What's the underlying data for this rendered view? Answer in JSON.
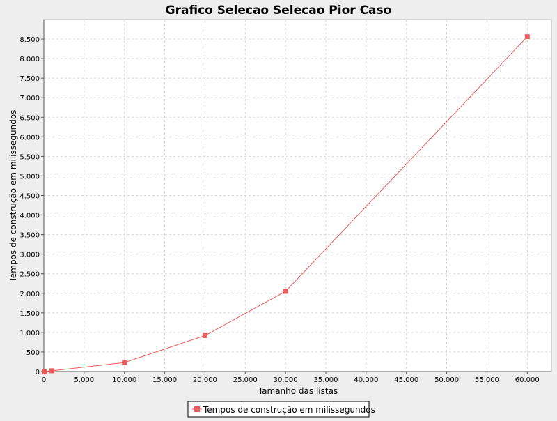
{
  "colors": {
    "background": "#eeeeee",
    "plot_background": "#ffffff",
    "gridline": "#d8d8d8",
    "axis": "#555555",
    "series": "#f05a5a",
    "text": "#000000"
  },
  "chart_data": {
    "type": "line",
    "title": "Grafico Selecao Selecao Pior Caso",
    "xlabel": "Tamanho das listas",
    "ylabel": "Tempos de construção em milissegundos",
    "xlim": [
      0,
      63000
    ],
    "ylim": [
      0,
      9000
    ],
    "x_ticks": [
      0,
      5000,
      10000,
      15000,
      20000,
      25000,
      30000,
      35000,
      40000,
      45000,
      50000,
      55000,
      60000
    ],
    "x_tick_labels": [
      "0",
      "5.000",
      "10.000",
      "15.000",
      "20.000",
      "25.000",
      "30.000",
      "35.000",
      "40.000",
      "45.000",
      "50.000",
      "55.000",
      "60.000"
    ],
    "y_ticks": [
      0,
      500,
      1000,
      1500,
      2000,
      2500,
      3000,
      3500,
      4000,
      4500,
      5000,
      5500,
      6000,
      6500,
      7000,
      7500,
      8000,
      8500
    ],
    "y_tick_labels": [
      "0",
      "500",
      "1.000",
      "1.500",
      "2.000",
      "2.500",
      "3.000",
      "3.500",
      "4.000",
      "4.500",
      "5.000",
      "5.500",
      "6.000",
      "6.500",
      "7.000",
      "7.500",
      "8.000",
      "8.500"
    ],
    "grid": true,
    "legend_position": "bottom-center",
    "series": [
      {
        "name": "Tempos de construção em milissegundos",
        "marker": "square",
        "x": [
          100,
          1000,
          10000,
          20000,
          30000,
          60000
        ],
        "y": [
          2,
          20,
          230,
          920,
          2050,
          8560
        ]
      }
    ]
  }
}
